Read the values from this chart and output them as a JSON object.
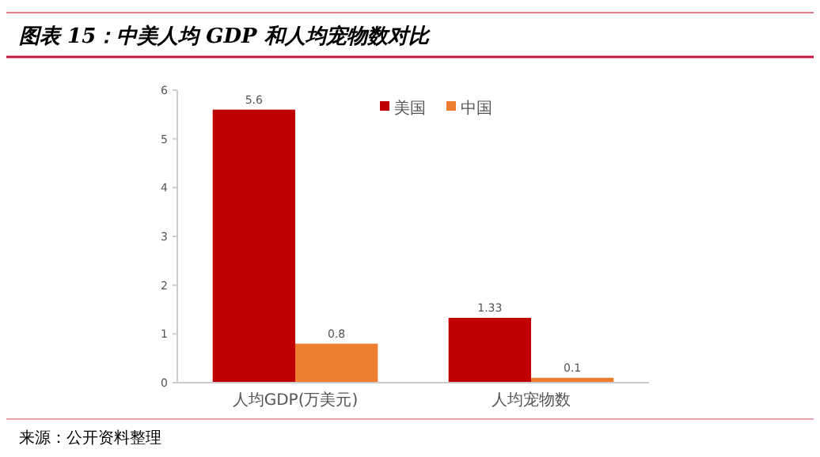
{
  "chart_data": {
    "type": "bar",
    "title": "图表 15：中美人均 GDP 和人均宠物数对比",
    "categories": [
      "人均GDP(万美元)",
      "人均宠物数"
    ],
    "series": [
      {
        "name": "美国",
        "color": "#c00000",
        "values": [
          5.6,
          1.33
        ]
      },
      {
        "name": "中国",
        "color": "#ed7d31",
        "values": [
          0.8,
          0.1
        ]
      }
    ],
    "ylim": [
      0,
      6
    ],
    "yticks": [
      0,
      1,
      2,
      3,
      4,
      5,
      6
    ],
    "grid": false,
    "legend": "top",
    "data_labels": true,
    "annotations": [
      "来源：公开资料整理"
    ]
  }
}
